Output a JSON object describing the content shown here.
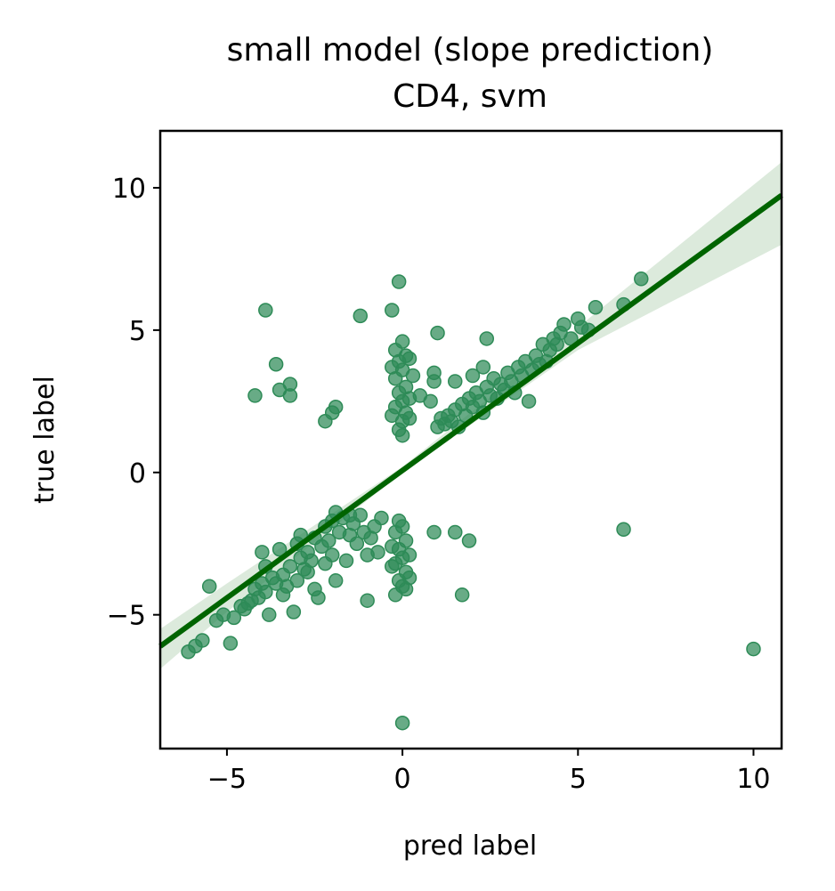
{
  "chart_data": {
    "type": "scatter",
    "title": "small model (slope prediction)",
    "subtitle": "CD4, svm",
    "xlabel": "pred label",
    "ylabel": "true label",
    "xlim": [
      -6.9,
      10.8
    ],
    "ylim": [
      -9.7,
      12.0
    ],
    "xticks": [
      -5,
      0,
      5,
      10
    ],
    "yticks": [
      -5,
      0,
      5,
      10
    ],
    "xtick_labels": [
      "−5",
      "0",
      "5",
      "10"
    ],
    "ytick_labels": [
      "−5",
      "0",
      "5",
      "10"
    ],
    "grid": false,
    "colors": {
      "points": "#2e8b57",
      "regression_line": "#006400",
      "confidence_band": "#c5dcc5"
    },
    "regression_line": {
      "slope": 0.895,
      "intercept": 0.07,
      "x": [
        -6.9,
        10.8
      ]
    },
    "confidence_band": {
      "x": [
        -6.9,
        -5,
        0,
        5,
        10.8
      ],
      "lower": [
        -6.9,
        -4.9,
        0.0,
        4.3,
        8.0
      ],
      "upper": [
        -5.5,
        -3.9,
        0.2,
        5.1,
        10.9
      ]
    },
    "points": [
      [
        -6.1,
        -6.3
      ],
      [
        -5.9,
        -6.1
      ],
      [
        -5.7,
        -5.9
      ],
      [
        -5.5,
        -4.0
      ],
      [
        -5.3,
        -5.2
      ],
      [
        -5.1,
        -5.0
      ],
      [
        -4.9,
        -6.0
      ],
      [
        -4.8,
        -5.1
      ],
      [
        -4.6,
        -4.7
      ],
      [
        -4.5,
        -4.8
      ],
      [
        -4.3,
        -4.5
      ],
      [
        -4.2,
        -4.1
      ],
      [
        -4.1,
        -4.4
      ],
      [
        -4.0,
        -3.9
      ],
      [
        -3.9,
        -4.2
      ],
      [
        -3.8,
        -5.0
      ],
      [
        -3.7,
        -3.7
      ],
      [
        -3.6,
        -3.9
      ],
      [
        -3.5,
        -2.7
      ],
      [
        -3.4,
        -3.6
      ],
      [
        -3.3,
        -4.0
      ],
      [
        -3.2,
        -3.3
      ],
      [
        -3.1,
        -4.9
      ],
      [
        -3.0,
        -3.8
      ],
      [
        -2.9,
        -3.0
      ],
      [
        -2.8,
        -3.4
      ],
      [
        -2.7,
        -2.8
      ],
      [
        -2.6,
        -3.1
      ],
      [
        -2.5,
        -4.1
      ],
      [
        -2.4,
        -4.4
      ],
      [
        -2.3,
        -2.6
      ],
      [
        -2.2,
        -3.2
      ],
      [
        -2.1,
        -2.4
      ],
      [
        -2.0,
        -2.9
      ],
      [
        -1.9,
        -3.8
      ],
      [
        -1.8,
        -2.1
      ],
      [
        -1.7,
        -1.6
      ],
      [
        -1.6,
        -3.1
      ],
      [
        -1.5,
        -2.2
      ],
      [
        -1.4,
        -1.8
      ],
      [
        -1.3,
        -2.5
      ],
      [
        -1.2,
        -1.5
      ],
      [
        -1.1,
        -2.1
      ],
      [
        -1.0,
        -2.9
      ],
      [
        -0.9,
        -2.3
      ],
      [
        -0.8,
        -1.9
      ],
      [
        -0.7,
        -2.8
      ],
      [
        -0.6,
        -1.6
      ],
      [
        -2.5,
        -2.3
      ],
      [
        -2.2,
        -1.9
      ],
      [
        -1.9,
        -1.4
      ],
      [
        -2.7,
        -3.5
      ],
      [
        -3.4,
        -4.3
      ],
      [
        -4.4,
        -4.6
      ],
      [
        -3.9,
        -3.3
      ],
      [
        -3.0,
        -2.5
      ],
      [
        -2.0,
        -1.7
      ],
      [
        -1.5,
        -1.5
      ],
      [
        -4.0,
        -2.8
      ],
      [
        -2.9,
        -2.2
      ],
      [
        -4.2,
        2.7
      ],
      [
        -3.9,
        5.7
      ],
      [
        -3.6,
        3.8
      ],
      [
        -3.5,
        2.9
      ],
      [
        -3.2,
        3.1
      ],
      [
        -3.2,
        2.7
      ],
      [
        -2.2,
        1.8
      ],
      [
        -2.0,
        2.1
      ],
      [
        -1.9,
        2.3
      ],
      [
        -1.2,
        5.5
      ],
      [
        -1.0,
        -4.5
      ],
      [
        -0.3,
        5.7
      ],
      [
        -0.1,
        6.7
      ],
      [
        0.0,
        4.6
      ],
      [
        -0.2,
        4.3
      ],
      [
        0.1,
        4.1
      ],
      [
        -0.1,
        3.9
      ],
      [
        0.0,
        3.6
      ],
      [
        -0.2,
        3.3
      ],
      [
        0.1,
        3.0
      ],
      [
        -0.1,
        2.8
      ],
      [
        0.0,
        2.5
      ],
      [
        -0.2,
        2.3
      ],
      [
        0.1,
        2.1
      ],
      [
        0.0,
        1.8
      ],
      [
        -0.1,
        1.5
      ],
      [
        0.0,
        1.3
      ],
      [
        0.2,
        2.6
      ],
      [
        -0.3,
        2.0
      ],
      [
        0.3,
        3.4
      ],
      [
        0.2,
        4.0
      ],
      [
        -0.3,
        3.7
      ],
      [
        0.2,
        1.9
      ],
      [
        -0.1,
        -1.7
      ],
      [
        0.0,
        -1.9
      ],
      [
        -0.2,
        -2.1
      ],
      [
        0.1,
        -2.4
      ],
      [
        -0.1,
        -2.7
      ],
      [
        0.0,
        -3.0
      ],
      [
        -0.2,
        -3.2
      ],
      [
        0.1,
        -3.5
      ],
      [
        -0.1,
        -3.8
      ],
      [
        0.0,
        -4.0
      ],
      [
        -0.2,
        -4.3
      ],
      [
        0.1,
        -4.1
      ],
      [
        0.2,
        -2.9
      ],
      [
        -0.3,
        -3.3
      ],
      [
        0.2,
        -3.7
      ],
      [
        -0.3,
        -2.6
      ],
      [
        0.0,
        -8.8
      ],
      [
        0.5,
        2.7
      ],
      [
        0.8,
        2.5
      ],
      [
        0.9,
        3.5
      ],
      [
        1.0,
        1.6
      ],
      [
        1.1,
        1.9
      ],
      [
        1.2,
        1.7
      ],
      [
        1.3,
        2.0
      ],
      [
        1.4,
        1.8
      ],
      [
        1.5,
        2.2
      ],
      [
        1.6,
        1.6
      ],
      [
        1.7,
        2.4
      ],
      [
        1.8,
        2.0
      ],
      [
        1.9,
        2.6
      ],
      [
        2.0,
        2.3
      ],
      [
        2.1,
        2.8
      ],
      [
        2.2,
        2.5
      ],
      [
        2.3,
        2.1
      ],
      [
        2.4,
        3.0
      ],
      [
        2.5,
        2.7
      ],
      [
        2.6,
        3.3
      ],
      [
        2.7,
        2.6
      ],
      [
        2.8,
        3.1
      ],
      [
        2.9,
        2.9
      ],
      [
        3.0,
        3.5
      ],
      [
        3.1,
        3.2
      ],
      [
        3.2,
        2.8
      ],
      [
        3.3,
        3.7
      ],
      [
        3.4,
        3.4
      ],
      [
        3.5,
        3.9
      ],
      [
        3.6,
        2.5
      ],
      [
        3.7,
        3.6
      ],
      [
        3.8,
        4.1
      ],
      [
        3.9,
        3.8
      ],
      [
        4.0,
        4.5
      ],
      [
        4.1,
        3.9
      ],
      [
        4.2,
        4.3
      ],
      [
        4.3,
        4.7
      ],
      [
        4.4,
        4.5
      ],
      [
        4.5,
        4.9
      ],
      [
        4.6,
        5.2
      ],
      [
        4.8,
        4.7
      ],
      [
        5.0,
        5.4
      ],
      [
        5.1,
        5.1
      ],
      [
        5.3,
        5.0
      ],
      [
        5.5,
        5.8
      ],
      [
        6.3,
        5.9
      ],
      [
        6.8,
        6.8
      ],
      [
        1.0,
        4.9
      ],
      [
        0.9,
        3.2
      ],
      [
        2.4,
        4.7
      ],
      [
        2.3,
        3.7
      ],
      [
        1.5,
        3.2
      ],
      [
        2.0,
        3.4
      ],
      [
        0.9,
        -2.1
      ],
      [
        1.5,
        -2.1
      ],
      [
        1.7,
        -4.3
      ],
      [
        1.9,
        -2.4
      ],
      [
        6.3,
        -2.0
      ],
      [
        10.0,
        -6.2
      ]
    ]
  }
}
